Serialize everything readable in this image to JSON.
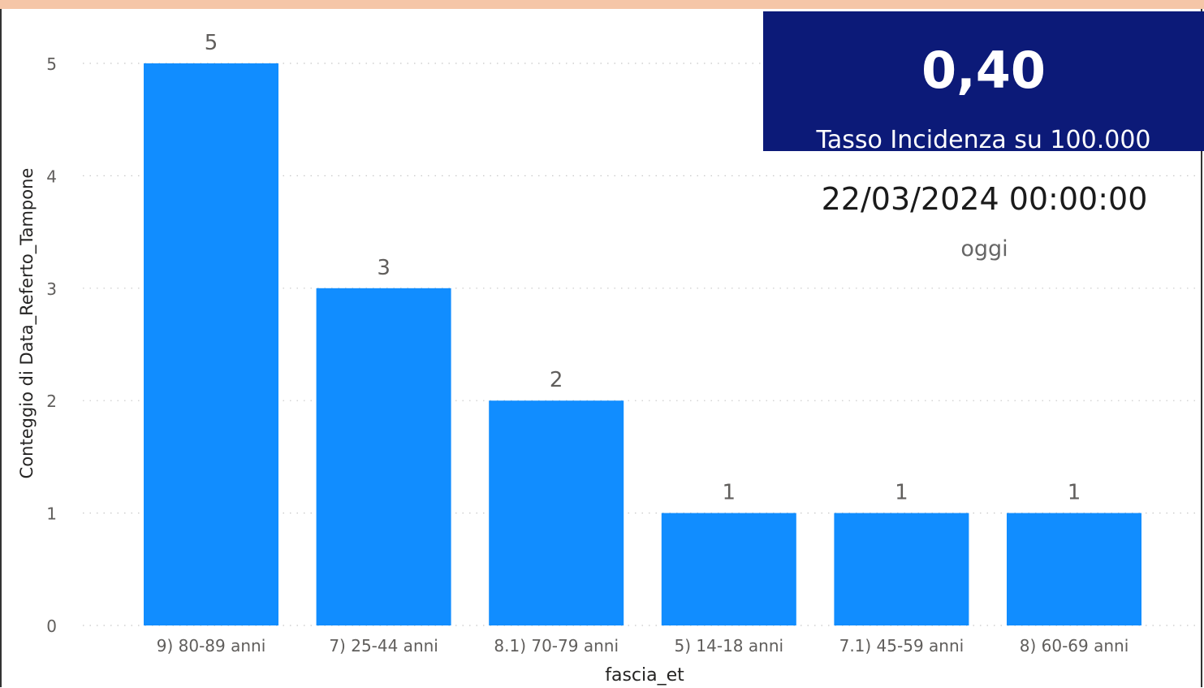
{
  "chart_data": {
    "type": "bar",
    "categories": [
      "9) 80-89 anni",
      "7) 25-44 anni",
      "8.1) 70-79 anni",
      "5) 14-18 anni",
      "7.1) 45-59 anni",
      "8) 60-69 anni"
    ],
    "values": [
      5,
      3,
      2,
      1,
      1,
      1
    ],
    "xlabel": "fascia_et",
    "ylabel": "Conteggio di Data_Referto_Tampone",
    "ylim": [
      0,
      5
    ],
    "yticks": [
      0,
      1,
      2,
      3,
      4,
      5
    ],
    "data_labels": true,
    "grid": "horizontal-dotted",
    "bar_color": "#118dff"
  },
  "kpi": {
    "value": "0,40",
    "label": "Tasso Incidenza su 100.000",
    "background": "#0c1a78"
  },
  "date_card": {
    "value": "22/03/2024 00:00:00",
    "label": "oggi"
  }
}
